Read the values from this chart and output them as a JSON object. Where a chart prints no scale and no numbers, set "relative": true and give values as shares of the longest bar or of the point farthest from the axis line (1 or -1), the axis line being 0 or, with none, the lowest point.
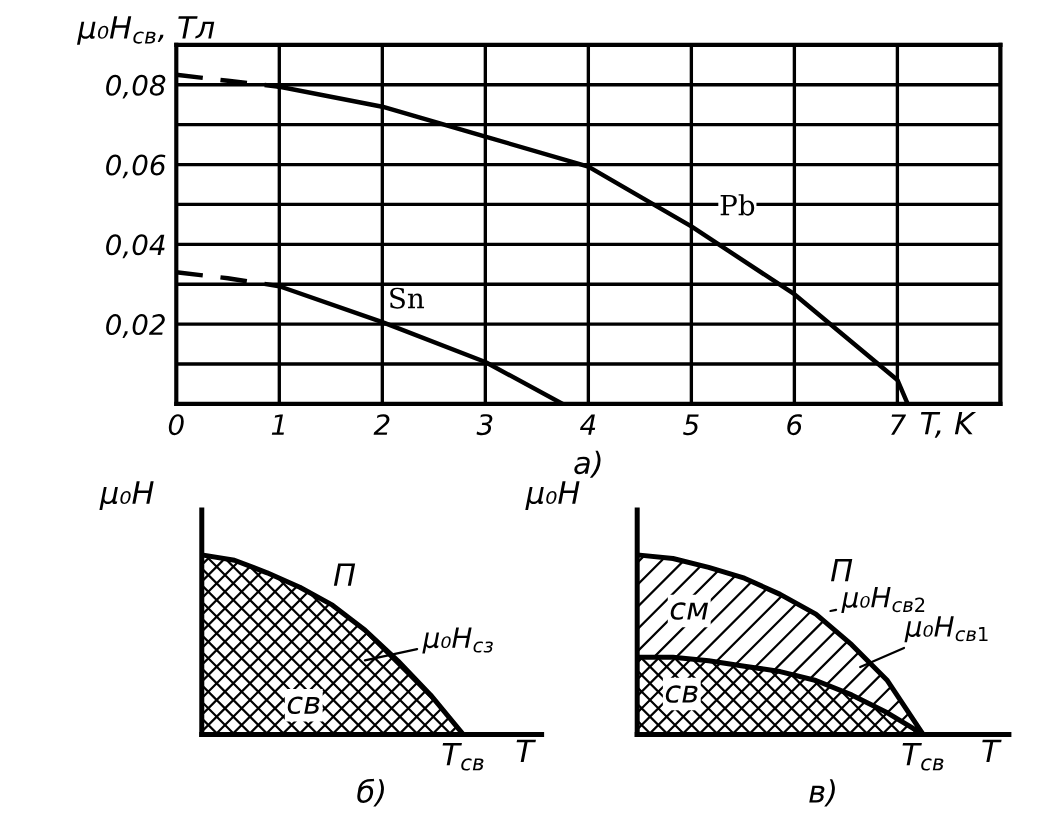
{
  "chart_data": [
    {
      "type": "line",
      "subtitle": "а)",
      "xlabel": "T, K",
      "ylabel": "μ₀H$_{св}$, Тл",
      "xlim": [
        0,
        8
      ],
      "xticks": [
        0,
        1,
        2,
        3,
        4,
        5,
        6,
        7,
        {
          "value": 8,
          "label": null
        }
      ],
      "ylim": [
        0,
        0.09
      ],
      "yticks": [
        {
          "value": 0,
          "label": null
        },
        {
          "value": 0.01,
          "label": null
        },
        {
          "value": 0.02,
          "label": "0,02"
        },
        {
          "value": 0.03,
          "label": null
        },
        {
          "value": 0.04,
          "label": "0,04"
        },
        {
          "value": 0.05,
          "label": null
        },
        {
          "value": 0.06,
          "label": "0,06"
        },
        {
          "value": 0.07,
          "label": null
        },
        {
          "value": 0.08,
          "label": "0,08"
        },
        {
          "value": 0.09,
          "label": null
        }
      ],
      "grid": true,
      "legend": false,
      "series": [
        {
          "color": "#000000",
          "line_style": "dashed",
          "x": [
            0,
            0.5,
            1
          ],
          "values": [
            0.0825,
            0.081,
            0.0795
          ]
        },
        {
          "name": "Pb",
          "color": "#000000",
          "line_style": "solid",
          "x": [
            1,
            2,
            3,
            4,
            5,
            6,
            7,
            7.1
          ],
          "values": [
            0.0795,
            0.0745,
            0.067,
            0.0595,
            0.0445,
            0.0275,
            0.006,
            0
          ]
        },
        {
          "color": "#000000",
          "line_style": "dashed",
          "x": [
            0,
            0.5,
            1
          ],
          "values": [
            0.033,
            0.0315,
            0.0295
          ]
        },
        {
          "name": "Sn",
          "color": "#000000",
          "line_style": "solid",
          "x": [
            1,
            2,
            3,
            3.75
          ],
          "values": [
            0.0295,
            0.0205,
            0.0105,
            0
          ]
        }
      ]
    },
    {
      "type": "area",
      "relative": true,
      "subtitle": "б)",
      "xlabel": "T",
      "ylabel": "μ₀H",
      "categories": [
        null,
        null,
        null,
        null,
        null,
        null,
        null,
        null,
        null
      ],
      "series": [
        {
          "color": "#000000",
          "values": [
            1,
            0.97,
            0.9,
            0.82,
            0.72,
            0.58,
            0.41,
            0.22,
            0
          ]
        }
      ],
      "annotations": [
        "П",
        "μ₀H$_{сз}$",
        "св",
        "T$_{св}$"
      ]
    },
    {
      "type": "area",
      "relative": true,
      "subtitle": "в)",
      "xlabel": "T",
      "ylabel": "μ₀H",
      "categories": [
        null,
        null,
        null,
        null,
        null,
        null,
        null,
        null,
        null
      ],
      "series": [
        {
          "color": "#000000",
          "values": [
            1,
            0.98,
            0.93,
            0.87,
            0.78,
            0.67,
            0.5,
            0.3,
            0
          ]
        },
        {
          "color": "#000000",
          "values": [
            0.43,
            0.43,
            0.41,
            0.38,
            0.35,
            0.3,
            0.22,
            0.12,
            0
          ]
        }
      ],
      "annotations": [
        "П",
        "μ₀H$_{св2}$",
        "μ₀H$_{св1}$",
        "см",
        "св",
        "T$_{св}$"
      ]
    }
  ]
}
